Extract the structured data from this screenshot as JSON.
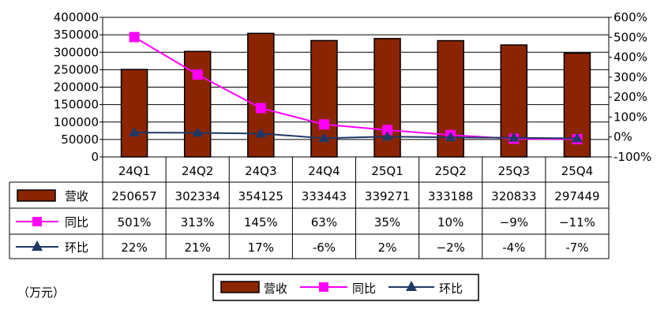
{
  "chart_data": {
    "type": "bar",
    "categories": [
      "24Q1",
      "24Q2",
      "24Q3",
      "24Q4",
      "25Q1",
      "25Q2",
      "25Q3",
      "25Q4"
    ],
    "unit_label": "（万元）",
    "ylim_left": [
      0,
      400000
    ],
    "ylim_right": [
      -100,
      600
    ],
    "left_ticks": [
      "400000",
      "350000",
      "300000",
      "250000",
      "200000",
      "150000",
      "100000",
      "50000",
      "0"
    ],
    "right_ticks": [
      "600%",
      "500%",
      "400%",
      "300%",
      "200%",
      "100%",
      "0%",
      "-100%"
    ],
    "grid": true,
    "legend_position": "bottom",
    "series": [
      {
        "name": "营收",
        "type": "bar",
        "axis": "left",
        "color": "#8B2500",
        "values": [
          250657,
          302334,
          354125,
          333443,
          339271,
          333188,
          320833,
          297449
        ],
        "labels": [
          "250657",
          "302334",
          "354125",
          "333443",
          "339271",
          "333188",
          "320833",
          "297449"
        ]
      },
      {
        "name": "同比",
        "type": "line",
        "axis": "right",
        "color": "#FF00FF",
        "marker": "square",
        "values": [
          501,
          313,
          145,
          63,
          35,
          10,
          -9,
          -11
        ],
        "labels": [
          "501%",
          "313%",
          "145%",
          "63%",
          "35%",
          "10%",
          "−9%",
          "−11%"
        ]
      },
      {
        "name": "环比",
        "type": "line",
        "axis": "right",
        "color": "#1F3864",
        "marker": "triangle",
        "values": [
          22,
          21,
          17,
          -6,
          2,
          -2,
          -4,
          -7
        ],
        "labels": [
          "22%",
          "21%",
          "17%",
          "-6%",
          "2%",
          "−2%",
          "-4%",
          "-7%"
        ]
      }
    ]
  }
}
